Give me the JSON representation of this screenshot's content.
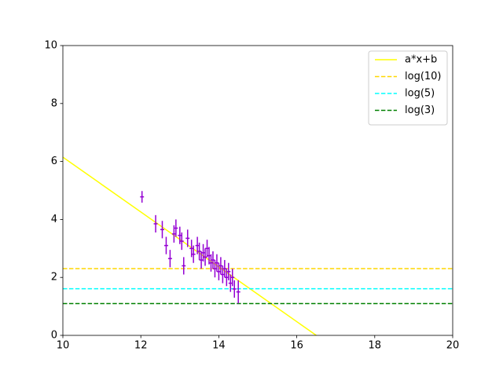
{
  "chart_data": {
    "type": "errorbar",
    "xlim": [
      10,
      20
    ],
    "ylim": [
      0,
      10
    ],
    "xticks": [
      10,
      12,
      14,
      16,
      18,
      20
    ],
    "yticks": [
      0,
      2,
      4,
      6,
      8,
      10
    ],
    "grid": false,
    "legend": "upper right",
    "points": {
      "color": "#9400d3",
      "x": [
        12.03,
        12.38,
        12.55,
        12.65,
        12.75,
        12.85,
        12.9,
        13.0,
        13.05,
        13.1,
        13.2,
        13.3,
        13.35,
        13.45,
        13.5,
        13.55,
        13.6,
        13.65,
        13.7,
        13.75,
        13.8,
        13.85,
        13.9,
        13.95,
        14.0,
        14.05,
        14.1,
        14.15,
        14.2,
        14.25,
        14.3,
        14.35,
        14.4,
        14.5
      ],
      "values": [
        4.78,
        3.85,
        3.65,
        3.1,
        2.65,
        3.5,
        3.7,
        3.45,
        3.25,
        2.4,
        3.35,
        3.0,
        2.8,
        3.1,
        2.9,
        2.6,
        2.85,
        2.7,
        3.0,
        2.75,
        2.5,
        2.6,
        2.3,
        2.5,
        2.2,
        2.4,
        2.1,
        2.3,
        2.0,
        2.2,
        1.8,
        2.0,
        1.6,
        1.5
      ],
      "xerr": [
        0.05,
        0.05,
        0.05,
        0.05,
        0.05,
        0.05,
        0.05,
        0.05,
        0.05,
        0.05,
        0.05,
        0.05,
        0.05,
        0.05,
        0.05,
        0.05,
        0.05,
        0.05,
        0.05,
        0.05,
        0.05,
        0.05,
        0.05,
        0.05,
        0.05,
        0.05,
        0.05,
        0.05,
        0.05,
        0.05,
        0.05,
        0.05,
        0.05,
        0.05
      ],
      "yerr": [
        0.2,
        0.3,
        0.3,
        0.3,
        0.3,
        0.3,
        0.3,
        0.3,
        0.3,
        0.3,
        0.3,
        0.3,
        0.3,
        0.3,
        0.3,
        0.3,
        0.3,
        0.3,
        0.3,
        0.3,
        0.3,
        0.3,
        0.3,
        0.3,
        0.3,
        0.3,
        0.3,
        0.3,
        0.3,
        0.3,
        0.3,
        0.3,
        0.3,
        0.4
      ]
    },
    "lines": [
      {
        "name": "a*x+b",
        "color": "#ffff00",
        "dash": false,
        "x": [
          10,
          16.5
        ],
        "values": [
          6.15,
          0
        ]
      },
      {
        "name": "log(10)",
        "color": "#ffd700",
        "dash": true,
        "x": [
          10,
          20
        ],
        "values": [
          2.303,
          2.303
        ]
      },
      {
        "name": "log(5)",
        "color": "#00ffff",
        "dash": true,
        "x": [
          10,
          20
        ],
        "values": [
          1.609,
          1.609
        ]
      },
      {
        "name": "log(3)",
        "color": "#008000",
        "dash": true,
        "x": [
          10,
          20
        ],
        "values": [
          1.099,
          1.099
        ]
      }
    ]
  }
}
